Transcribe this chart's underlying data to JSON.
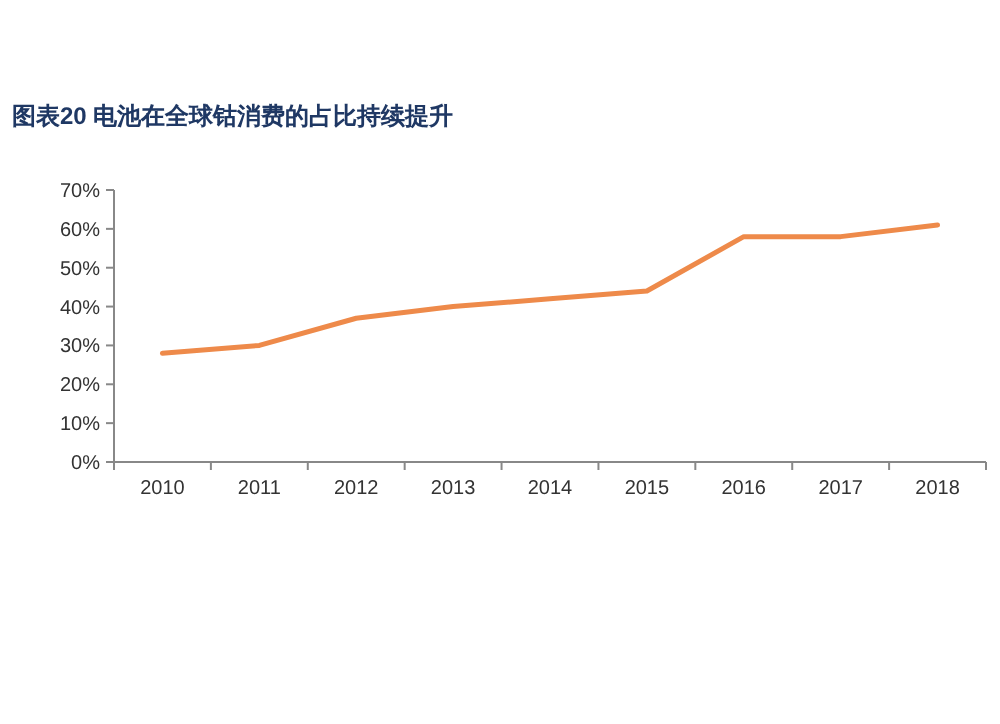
{
  "chart_data": {
    "type": "line",
    "title": "图表20    电池在全球钴消费的占比持续提升",
    "categories": [
      "2010",
      "2011",
      "2012",
      "2013",
      "2014",
      "2015",
      "2016",
      "2017",
      "2018"
    ],
    "series": [
      {
        "color": "#ee8a4a",
        "values": [
          28,
          30,
          37,
          40,
          42,
          44,
          58,
          58,
          61
        ]
      }
    ],
    "ylim": [
      0,
      70
    ],
    "yticks": [
      {
        "value": 0,
        "label": "0%"
      },
      {
        "value": 10,
        "label": "10%"
      },
      {
        "value": 20,
        "label": "20%"
      },
      {
        "value": 30,
        "label": "30%"
      },
      {
        "value": 40,
        "label": "40%"
      },
      {
        "value": 50,
        "label": "50%"
      },
      {
        "value": 60,
        "label": "60%"
      },
      {
        "value": 70,
        "label": "70%"
      }
    ],
    "grid": false,
    "marker": "none",
    "line_style": "solid"
  }
}
